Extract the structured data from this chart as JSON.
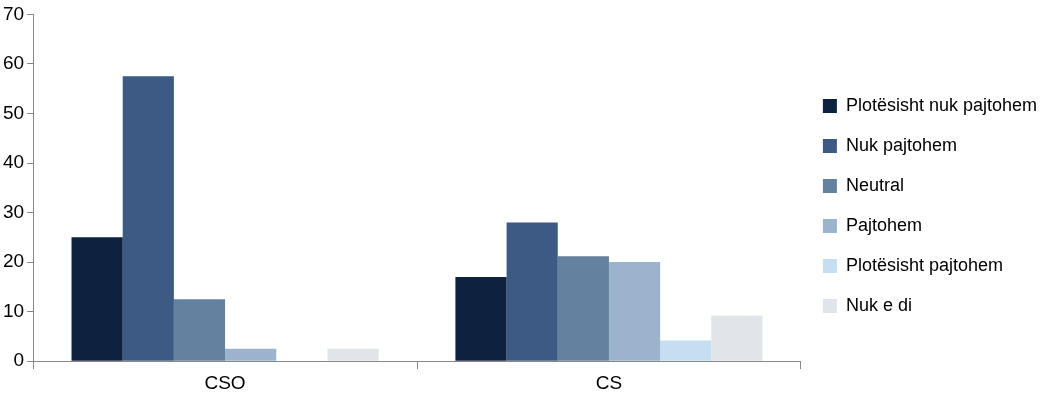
{
  "chart_data": {
    "type": "bar",
    "categories": [
      "CSO",
      "CS"
    ],
    "series": [
      {
        "name": "Plotësisht nuk pajtohem",
        "color": "#0e2240",
        "values": [
          25,
          17
        ]
      },
      {
        "name": "Nuk pajtohem",
        "color": "#3d5a85",
        "values": [
          57.5,
          28
        ]
      },
      {
        "name": "Neutral",
        "color": "#6581a0",
        "values": [
          12.5,
          21.2
        ]
      },
      {
        "name": "Pajtohem",
        "color": "#9bb3cd",
        "values": [
          2.5,
          20
        ]
      },
      {
        "name": "Plotësisht pajtohem",
        "color": "#c5def2",
        "values": [
          0,
          4.2
        ]
      },
      {
        "name": "Nuk e di",
        "color": "#e1e5ea",
        "values": [
          2.5,
          9.2
        ]
      }
    ],
    "ylim": [
      0,
      70
    ],
    "yticks": [
      0,
      10,
      20,
      30,
      40,
      50,
      60,
      70
    ],
    "grid": false,
    "legend": "right"
  }
}
